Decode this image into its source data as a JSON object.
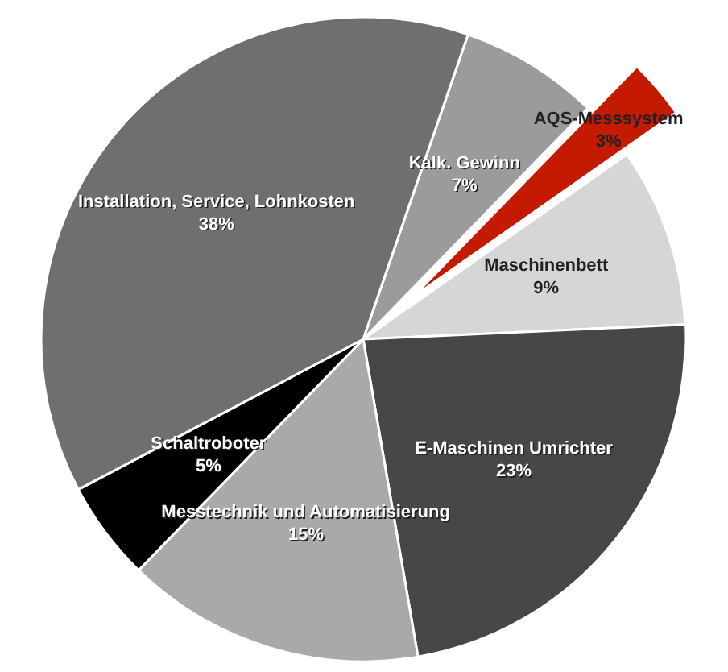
{
  "chart_data": {
    "type": "pie",
    "categories": [
      "Kalk. Gewinn",
      "AQS-Messsystem",
      "Maschinenbett",
      "E-Maschinen Umrichter",
      "Messtechnik und Automatisierung",
      "Schaltroboter",
      "Installation, Service, Lohnkosten"
    ],
    "values": [
      7,
      3,
      9,
      23,
      15,
      5,
      38
    ],
    "value_labels": [
      "7%",
      "3%",
      "9%",
      "23%",
      "15%",
      "5%",
      "38%"
    ],
    "colors": [
      "#9b9b9b",
      "#c41a00",
      "#d6d6d6",
      "#474747",
      "#a9a9a9",
      "#000000",
      "#6f6f6f"
    ]
  }
}
